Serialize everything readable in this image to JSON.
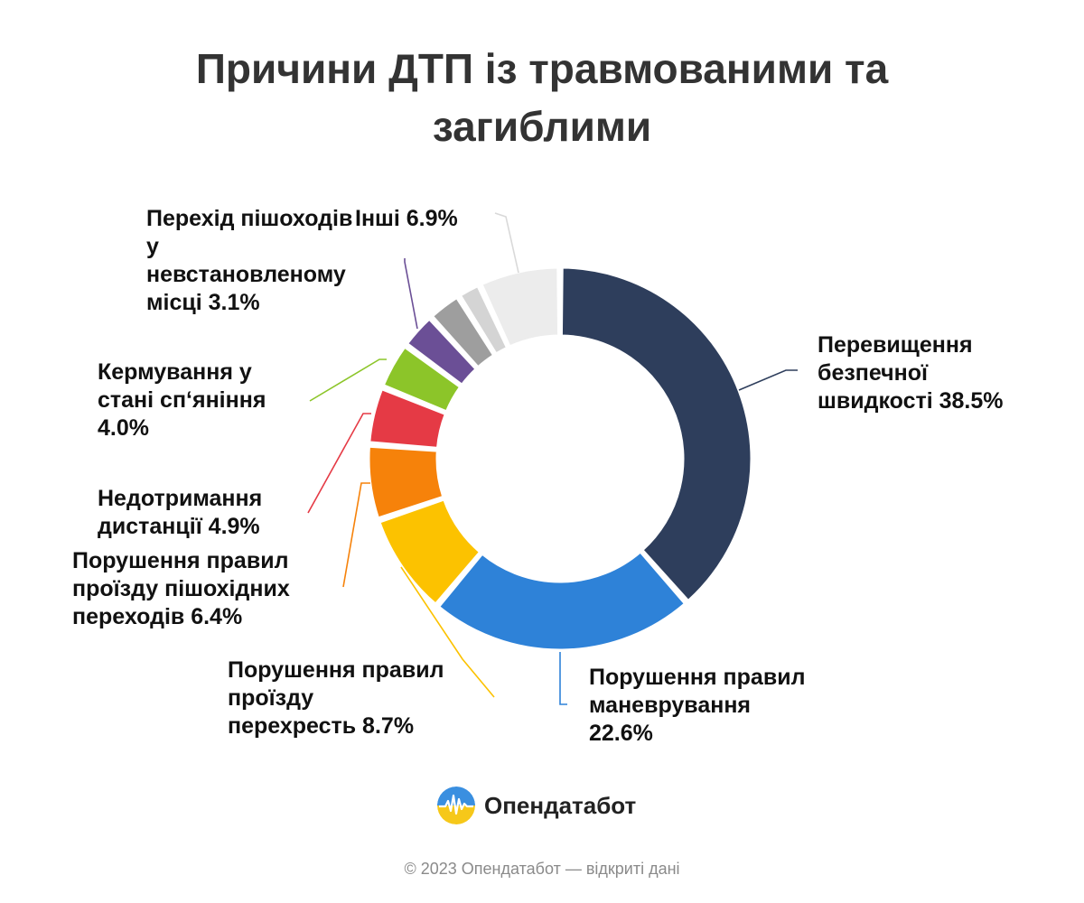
{
  "title_line1": "Причини ДТП із травмованими та",
  "title_line2": "загиблими",
  "brand": {
    "name": "Опендатабот",
    "logo_icon": "opendatabot-logo-icon"
  },
  "footer": "© 2023 Опендатабот — відкриті дані",
  "chart_data": {
    "type": "pie",
    "variant": "donut",
    "title": "Причини ДТП із травмованими та загиблими",
    "slices": [
      {
        "label_lines": [
          "Перевищення",
          "безпечної",
          "швидкості 38.5%"
        ],
        "value": 38.5,
        "color": "#2e3e5c"
      },
      {
        "label_lines": [
          "Порушення правил",
          "маневрування",
          "22.6%"
        ],
        "value": 22.6,
        "color": "#2e82d8"
      },
      {
        "label_lines": [
          "Порушення правил",
          "проїзду",
          "перехресть 8.7%"
        ],
        "value": 8.7,
        "color": "#fcc200"
      },
      {
        "label_lines": [
          "Порушення правил",
          "проїзду пішохідних",
          "переходів 6.4%"
        ],
        "value": 6.4,
        "color": "#f6820a"
      },
      {
        "label_lines": [
          "Недотримання",
          "дистанції 4.9%"
        ],
        "value": 4.9,
        "color": "#e53a45"
      },
      {
        "label_lines": [
          "Кермування у",
          "стані сп‘яніння",
          "4.0%"
        ],
        "value": 4.0,
        "color": "#8cc529"
      },
      {
        "label_lines": [
          "Перехід пішоходів",
          "у",
          "невстановленому",
          "місці 3.1%"
        ],
        "value": 3.1,
        "color": "#6b4f96"
      },
      {
        "label_lines": [],
        "value": 2.9,
        "color": "#9e9e9e"
      },
      {
        "label_lines": [],
        "value": 2.0,
        "color": "#d4d4d4"
      },
      {
        "label_lines": [
          "Інші 6.9%"
        ],
        "value": 6.9,
        "color": "#ececec"
      }
    ]
  }
}
